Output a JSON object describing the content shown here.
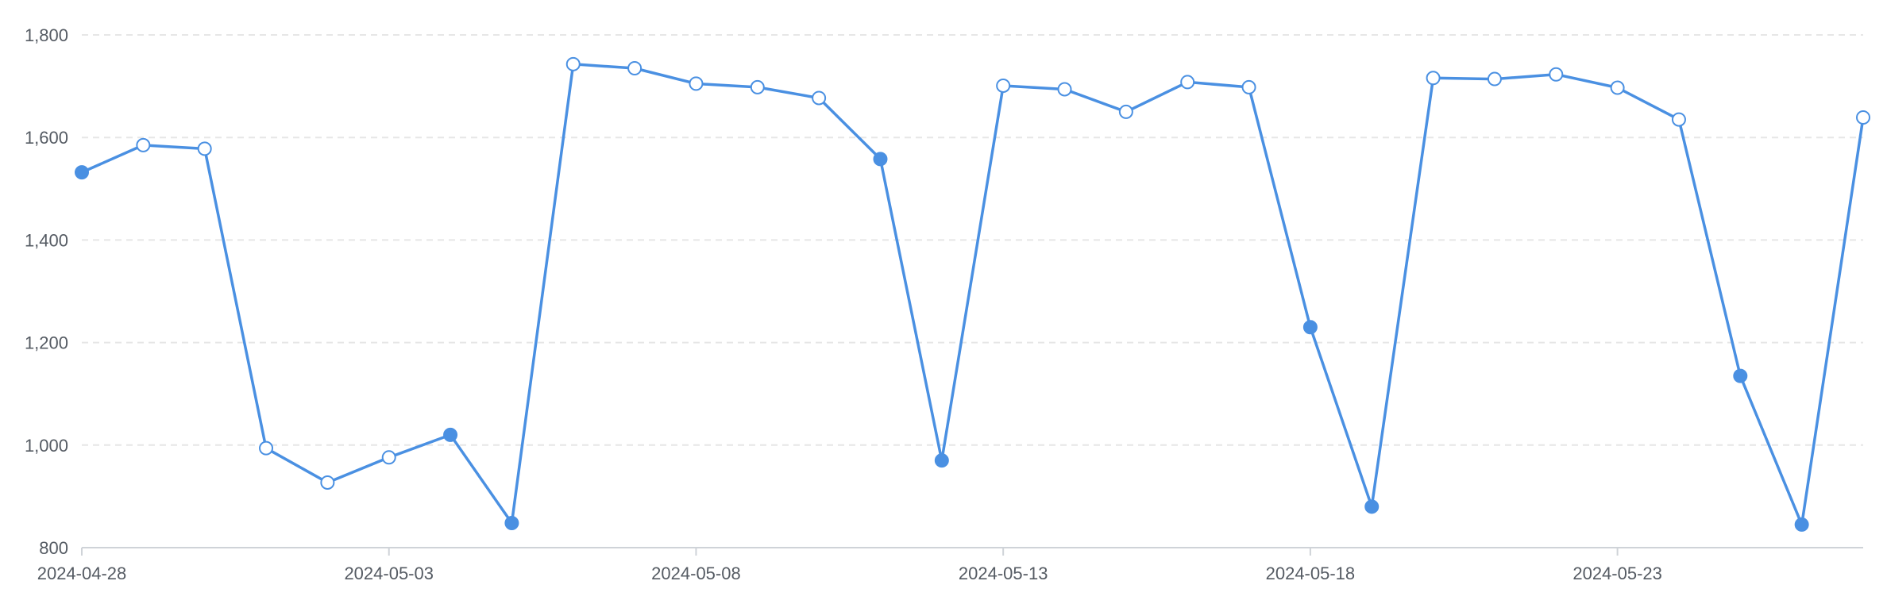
{
  "chart_data": {
    "type": "line",
    "title": "",
    "xlabel": "",
    "ylabel": "",
    "ylim": [
      800,
      1800
    ],
    "yticks": [
      800,
      1000,
      1200,
      1400,
      1600,
      1800
    ],
    "ytick_labels": [
      "800",
      "1,000",
      "1,200",
      "1,400",
      "1,600",
      "1,800"
    ],
    "xlim": [
      "2024-04-28",
      "2024-05-27"
    ],
    "xtick_labels": [
      "2024-04-28",
      "2024-05-03",
      "2024-05-08",
      "2024-05-13",
      "2024-05-18",
      "2024-05-23"
    ],
    "grid": {
      "y": true,
      "style": "dashed"
    },
    "legend": "none",
    "colors": {
      "line": "#4a90e2",
      "grid": "#e6e6e6",
      "axis": "#cfd3d8",
      "tick_text": "#555b63",
      "open_marker_fill": "#ffffff"
    },
    "series": [
      {
        "x": [
          "2024-04-28",
          "2024-04-29",
          "2024-04-30",
          "2024-05-01",
          "2024-05-02",
          "2024-05-03",
          "2024-05-04",
          "2024-05-05",
          "2024-05-06",
          "2024-05-07",
          "2024-05-08",
          "2024-05-09",
          "2024-05-10",
          "2024-05-11",
          "2024-05-12",
          "2024-05-13",
          "2024-05-14",
          "2024-05-15",
          "2024-05-16",
          "2024-05-17",
          "2024-05-18",
          "2024-05-19",
          "2024-05-20",
          "2024-05-21",
          "2024-05-22",
          "2024-05-23",
          "2024-05-24",
          "2024-05-25",
          "2024-05-26",
          "2024-05-27"
        ],
        "values": [
          1532,
          1585,
          1578,
          994,
          927,
          976,
          1020,
          848,
          1743,
          1735,
          1705,
          1698,
          1677,
          1558,
          970,
          1701,
          1694,
          1650,
          1708,
          1698,
          1230,
          880,
          1716,
          1714,
          1723,
          1697,
          1635,
          1135,
          845,
          1639
        ],
        "marker_filled": [
          true,
          false,
          false,
          false,
          false,
          false,
          true,
          true,
          false,
          false,
          false,
          false,
          false,
          true,
          true,
          false,
          false,
          false,
          false,
          false,
          true,
          true,
          false,
          false,
          false,
          false,
          false,
          true,
          true,
          false
        ]
      }
    ]
  }
}
